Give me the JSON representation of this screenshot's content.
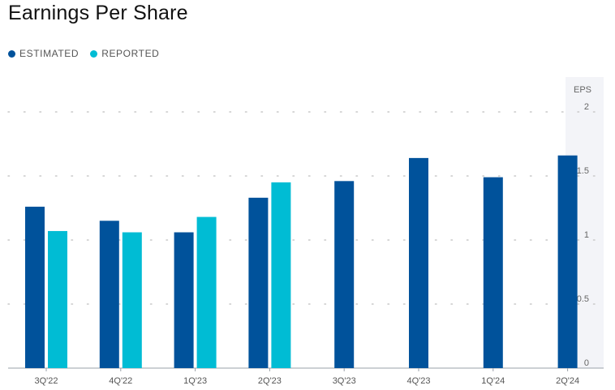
{
  "chart_data": {
    "type": "bar",
    "title": "Earnings Per Share",
    "ylabel": "EPS",
    "categories": [
      "3Q'22",
      "4Q'22",
      "1Q'23",
      "2Q'23",
      "3Q'23",
      "4Q'23",
      "1Q'24",
      "2Q'24"
    ],
    "series": [
      {
        "name": "ESTIMATED",
        "color": "#00529b",
        "values": [
          1.26,
          1.15,
          1.06,
          1.33,
          1.46,
          1.64,
          1.49,
          1.66
        ]
      },
      {
        "name": "REPORTED",
        "color": "#00bcd4",
        "values": [
          1.07,
          1.06,
          1.18,
          1.45,
          null,
          null,
          null,
          null
        ]
      }
    ],
    "yticks": [
      "0",
      "0.5",
      "1",
      "1.5",
      "2"
    ],
    "ylim": [
      0,
      2
    ],
    "grid": "dotted horizontal",
    "legend_position": "top-left"
  }
}
